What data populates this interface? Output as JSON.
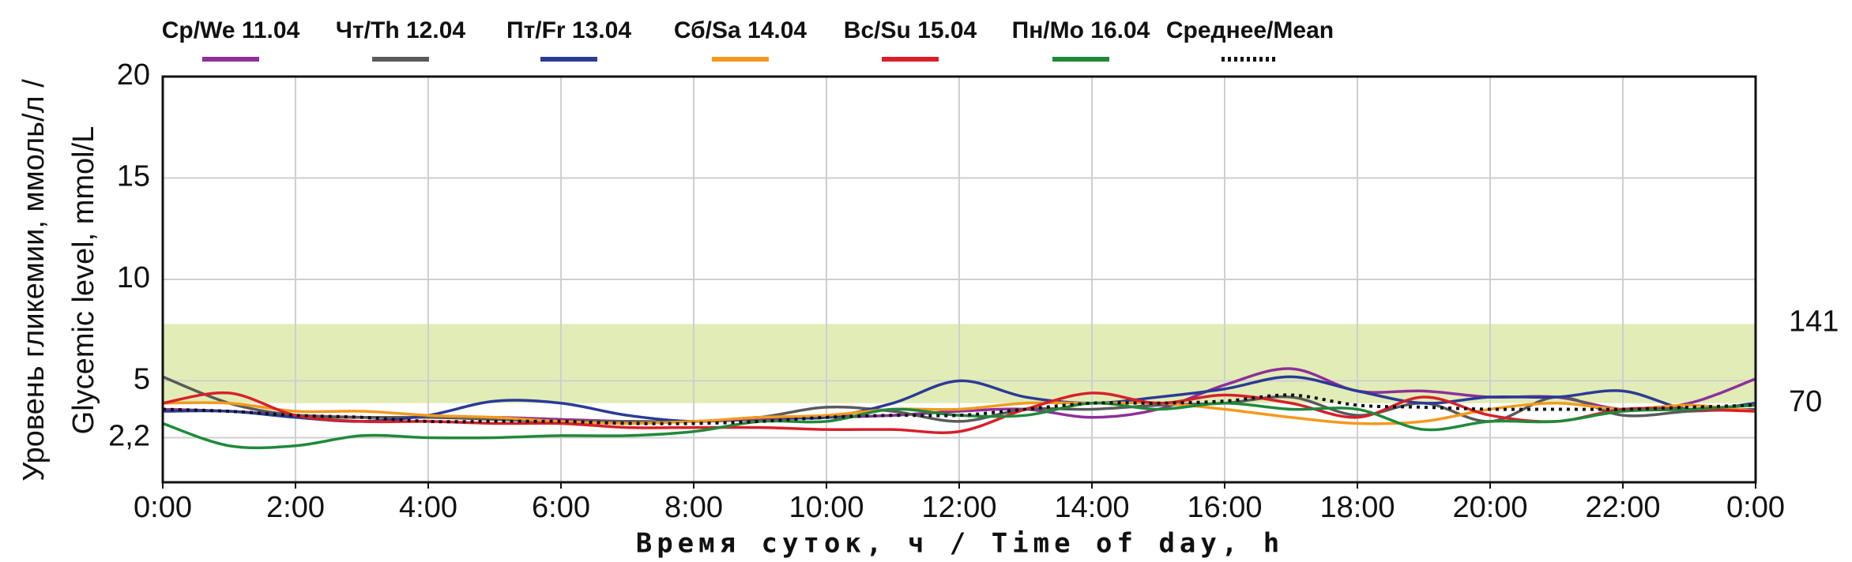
{
  "chart_data": {
    "type": "line",
    "xlabel": "Время суток, ч / Time of day, h",
    "ylabel": [
      "Уровень гликемии, ммоль/л /",
      "Glycemic level, mmol/L"
    ],
    "x": [
      0,
      1,
      2,
      3,
      4,
      5,
      6,
      7,
      8,
      9,
      10,
      11,
      12,
      13,
      14,
      15,
      16,
      17,
      18,
      19,
      20,
      21,
      22,
      23,
      24
    ],
    "xlim": [
      0,
      24
    ],
    "xticks": [
      {
        "value": 0,
        "label": "0:00"
      },
      {
        "value": 2,
        "label": "2:00"
      },
      {
        "value": 4,
        "label": "4:00"
      },
      {
        "value": 6,
        "label": "6:00"
      },
      {
        "value": 8,
        "label": "8:00"
      },
      {
        "value": 10,
        "label": "10:00"
      },
      {
        "value": 12,
        "label": "12:00"
      },
      {
        "value": 14,
        "label": "14:00"
      },
      {
        "value": 16,
        "label": "16:00"
      },
      {
        "value": 18,
        "label": "18:00"
      },
      {
        "value": 20,
        "label": "20:00"
      },
      {
        "value": 22,
        "label": "22:00"
      },
      {
        "value": 24,
        "label": "0:00"
      }
    ],
    "ylim": [
      0,
      20
    ],
    "yticks": [
      {
        "value": 2.2,
        "label": "2,2"
      },
      5,
      10,
      15,
      20
    ],
    "y2lim": [
      0,
      360
    ],
    "y2ticks": [
      70,
      141
    ],
    "target_range": [
      3.9,
      7.8
    ],
    "target_color": "#e2ecb6",
    "grid": true,
    "series": [
      {
        "name": "Ср/We 11.04",
        "color": "#8e2f9a",
        "values": [
          3.6,
          3.5,
          3.3,
          3.2,
          3.2,
          3.2,
          3.1,
          3.0,
          3.0,
          3.1,
          3.2,
          3.3,
          3.5,
          3.6,
          3.2,
          3.6,
          4.8,
          5.6,
          4.5,
          4.5,
          4.2,
          4.2,
          3.6,
          3.9,
          5.1
        ]
      },
      {
        "name": "Чт/Th 12.04",
        "color": "#5a5a5a",
        "values": [
          5.2,
          3.9,
          3.3,
          3.2,
          3.2,
          3.1,
          3.0,
          3.0,
          3.0,
          3.2,
          3.7,
          3.5,
          3.0,
          3.6,
          3.6,
          3.8,
          3.9,
          4.2,
          3.3,
          3.9,
          3.0,
          4.2,
          3.3,
          3.5,
          3.6
        ]
      },
      {
        "name": "Пт/Fr 13.04",
        "color": "#2a3b96",
        "values": [
          3.5,
          3.5,
          3.2,
          3.0,
          3.3,
          4.0,
          3.9,
          3.3,
          3.0,
          3.2,
          3.2,
          3.9,
          5.0,
          4.2,
          3.9,
          4.2,
          4.6,
          5.2,
          4.5,
          3.9,
          4.2,
          4.2,
          4.5,
          3.6,
          3.9
        ]
      },
      {
        "name": "Сб/Sa 14.04",
        "color": "#f39a1e",
        "values": [
          3.9,
          3.9,
          3.5,
          3.5,
          3.3,
          3.2,
          3.0,
          2.9,
          3.0,
          3.2,
          3.3,
          3.6,
          3.6,
          3.9,
          3.9,
          3.9,
          3.6,
          3.2,
          2.9,
          3.0,
          3.6,
          3.9,
          3.6,
          3.8,
          3.5
        ]
      },
      {
        "name": "Вс/Su 15.04",
        "color": "#d7202a",
        "values": [
          3.9,
          4.4,
          3.3,
          3.0,
          3.0,
          2.9,
          2.9,
          2.7,
          2.7,
          2.7,
          2.6,
          2.6,
          2.5,
          3.6,
          4.4,
          3.9,
          4.3,
          3.9,
          3.2,
          4.2,
          3.3,
          3.0,
          3.6,
          3.6,
          3.5
        ]
      },
      {
        "name": "Пн/Mo 16.04",
        "color": "#1f8a3a",
        "values": [
          2.9,
          1.8,
          1.8,
          2.3,
          2.2,
          2.2,
          2.3,
          2.3,
          2.5,
          3.0,
          3.0,
          3.6,
          3.3,
          3.3,
          3.9,
          3.6,
          3.9,
          3.6,
          3.6,
          2.6,
          3.0,
          3.0,
          3.5,
          3.6,
          3.8
        ]
      },
      {
        "name": "Среднее/Mean",
        "color": "#111111",
        "dotted": true,
        "values": [
          3.6,
          3.5,
          3.3,
          3.2,
          3.0,
          3.0,
          3.0,
          2.9,
          2.9,
          3.0,
          3.2,
          3.3,
          3.3,
          3.6,
          3.9,
          3.9,
          4.0,
          4.3,
          3.8,
          3.7,
          3.6,
          3.6,
          3.6,
          3.7,
          3.8
        ]
      }
    ]
  }
}
